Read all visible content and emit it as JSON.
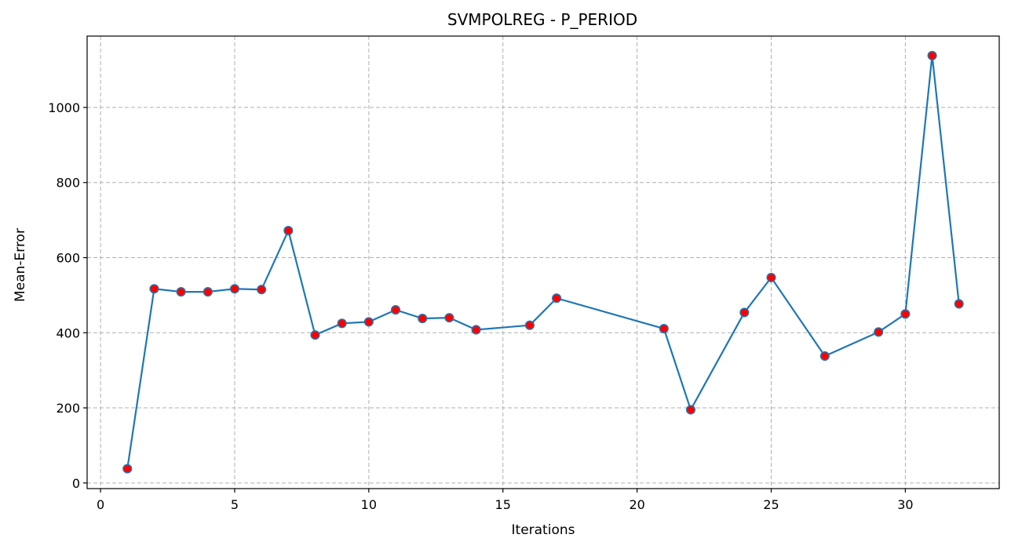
{
  "chart_data": {
    "type": "line",
    "title": "SVMPOLREG - P_PERIOD",
    "xlabel": "Iterations",
    "ylabel": "Mean-Error",
    "xlim": [
      -0.5,
      33.5
    ],
    "ylim": [
      -15,
      1190
    ],
    "xticks": [
      0,
      5,
      10,
      15,
      20,
      25,
      30
    ],
    "yticks": [
      0,
      200,
      400,
      600,
      800,
      1000
    ],
    "grid": true,
    "series": [
      {
        "line_color": "#1f77b4",
        "marker_color": "#ff0000",
        "marker_edge_color": "#1f77b4",
        "points": [
          {
            "x": 1,
            "y": 38
          },
          {
            "x": 2,
            "y": 517
          },
          {
            "x": 3,
            "y": 509
          },
          {
            "x": 4,
            "y": 509
          },
          {
            "x": 5,
            "y": 517
          },
          {
            "x": 6,
            "y": 515
          },
          {
            "x": 7,
            "y": 672
          },
          {
            "x": 8,
            "y": 394
          },
          {
            "x": 9,
            "y": 425
          },
          {
            "x": 10,
            "y": 429
          },
          {
            "x": 11,
            "y": 461
          },
          {
            "x": 12,
            "y": 438
          },
          {
            "x": 13,
            "y": 440
          },
          {
            "x": 14,
            "y": 408
          },
          {
            "x": 16,
            "y": 420
          },
          {
            "x": 17,
            "y": 492
          },
          {
            "x": 21,
            "y": 411
          },
          {
            "x": 22,
            "y": 195
          },
          {
            "x": 24,
            "y": 454
          },
          {
            "x": 25,
            "y": 547
          },
          {
            "x": 27,
            "y": 338
          },
          {
            "x": 29,
            "y": 402
          },
          {
            "x": 30,
            "y": 450
          },
          {
            "x": 31,
            "y": 1138
          },
          {
            "x": 32,
            "y": 477
          }
        ]
      }
    ]
  }
}
